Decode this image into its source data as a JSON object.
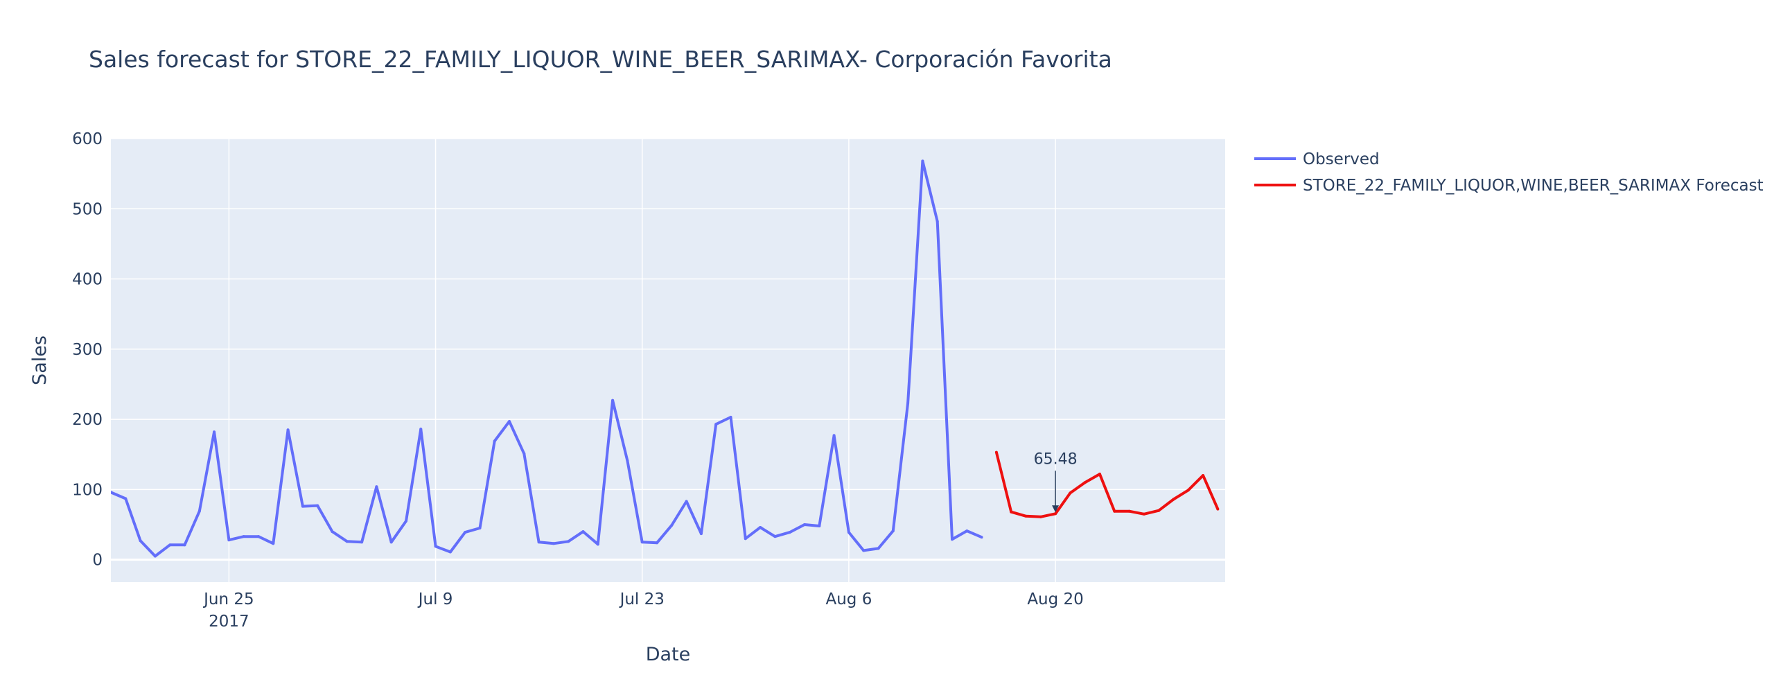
{
  "chart_data": {
    "type": "line",
    "title": "Sales forecast for STORE_22_FAMILY_LIQUOR_WINE_BEER_SARIMAX- Corporación Favorita",
    "xlabel": "Date",
    "ylabel": "Sales",
    "ylim": [
      -32,
      600
    ],
    "xlim_days": [
      -8.0,
      67.5
    ],
    "y_ticks": [
      0,
      100,
      200,
      300,
      400,
      500,
      600
    ],
    "x_ticks": [
      {
        "day": 0,
        "label": "Jun 25",
        "sublabel": "2017"
      },
      {
        "day": 14,
        "label": "Jul 9",
        "sublabel": ""
      },
      {
        "day": 28,
        "label": "Jul 23",
        "sublabel": ""
      },
      {
        "day": 42,
        "label": "Aug 6",
        "sublabel": ""
      },
      {
        "day": 56,
        "label": "Aug 20",
        "sublabel": ""
      }
    ],
    "grid": true,
    "legend_position": "top-right",
    "series": [
      {
        "name": "Observed",
        "color": "#636efa",
        "start_day": -8,
        "values": [
          96,
          87,
          27,
          5,
          21,
          21,
          69,
          182,
          28,
          33,
          33,
          23,
          185,
          76,
          77,
          40,
          26,
          25,
          104,
          25,
          55,
          186,
          19,
          11,
          39,
          45,
          169,
          197,
          151,
          25,
          23,
          26,
          40,
          22,
          227,
          141,
          25,
          24,
          49,
          83,
          37,
          193,
          203,
          30,
          46,
          33,
          39,
          50,
          48,
          177,
          39,
          13,
          16,
          41,
          223,
          568,
          482,
          29,
          41,
          32
        ]
      },
      {
        "name": "STORE_22_FAMILY_LIQUOR,WINE,BEER_SARIMAX Forecast",
        "color": "#ee1010",
        "start_day": 52,
        "values": [
          153,
          68,
          62,
          61,
          65.48,
          95,
          110,
          122,
          69,
          69,
          65,
          70,
          86,
          99,
          120,
          72
        ]
      }
    ],
    "annotations": [
      {
        "text": "65.48",
        "day": 56,
        "value": 65.48
      }
    ]
  }
}
